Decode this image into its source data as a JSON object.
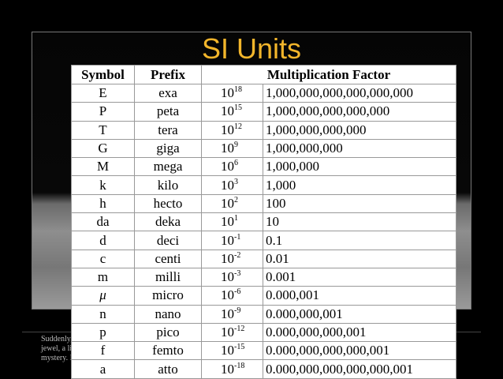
{
  "title": "SI Units",
  "table": {
    "header": [
      "Symbol",
      "Prefix",
      "Multiplication Factor"
    ],
    "rows": [
      {
        "symbol": "E",
        "prefix": "exa",
        "base": "10",
        "exponent": "18",
        "factor": "1,000,000,000,000,000,000"
      },
      {
        "symbol": "P",
        "prefix": "peta",
        "base": "10",
        "exponent": "15",
        "factor": "1,000,000,000,000,000"
      },
      {
        "symbol": "T",
        "prefix": "tera",
        "base": "10",
        "exponent": "12",
        "factor": "1,000,000,000,000"
      },
      {
        "symbol": "G",
        "prefix": "giga",
        "base": "10",
        "exponent": "9",
        "factor": "1,000,000,000"
      },
      {
        "symbol": "M",
        "prefix": "mega",
        "base": "10",
        "exponent": "6",
        "factor": "1,000,000"
      },
      {
        "symbol": "k",
        "prefix": "kilo",
        "base": "10",
        "exponent": "3",
        "factor": "1,000"
      },
      {
        "symbol": "h",
        "prefix": "hecto",
        "base": "10",
        "exponent": "2",
        "factor": "100"
      },
      {
        "symbol": "da",
        "prefix": "deka",
        "base": "10",
        "exponent": "1",
        "factor": "10"
      },
      {
        "symbol": "d",
        "prefix": "deci",
        "base": "10",
        "exponent": "-1",
        "factor": "0.1"
      },
      {
        "symbol": "c",
        "prefix": "centi",
        "base": "10",
        "exponent": "-2",
        "factor": "0.01"
      },
      {
        "symbol": "m",
        "prefix": "milli",
        "base": "10",
        "exponent": "-3",
        "factor": "0.001"
      },
      {
        "symbol": "μ",
        "prefix": "micro",
        "base": "10",
        "exponent": "-6",
        "factor": "0.000,001"
      },
      {
        "symbol": "n",
        "prefix": "nano",
        "base": "10",
        "exponent": "-9",
        "factor": "0.000,000,001"
      },
      {
        "symbol": "p",
        "prefix": "pico",
        "base": "10",
        "exponent": "-12",
        "factor": "0.000,000,000,001"
      },
      {
        "symbol": "f",
        "prefix": "femto",
        "base": "10",
        "exponent": "-15",
        "factor": "0.000,000,000,000,001"
      },
      {
        "symbol": "a",
        "prefix": "atto",
        "base": "10",
        "exponent": "-18",
        "factor": "0.000,000,000,000,000,001"
      }
    ]
  },
  "caption_fragments": [
    "Suddenly,",
    "jewel, a lig",
    "mystery. It"
  ]
}
